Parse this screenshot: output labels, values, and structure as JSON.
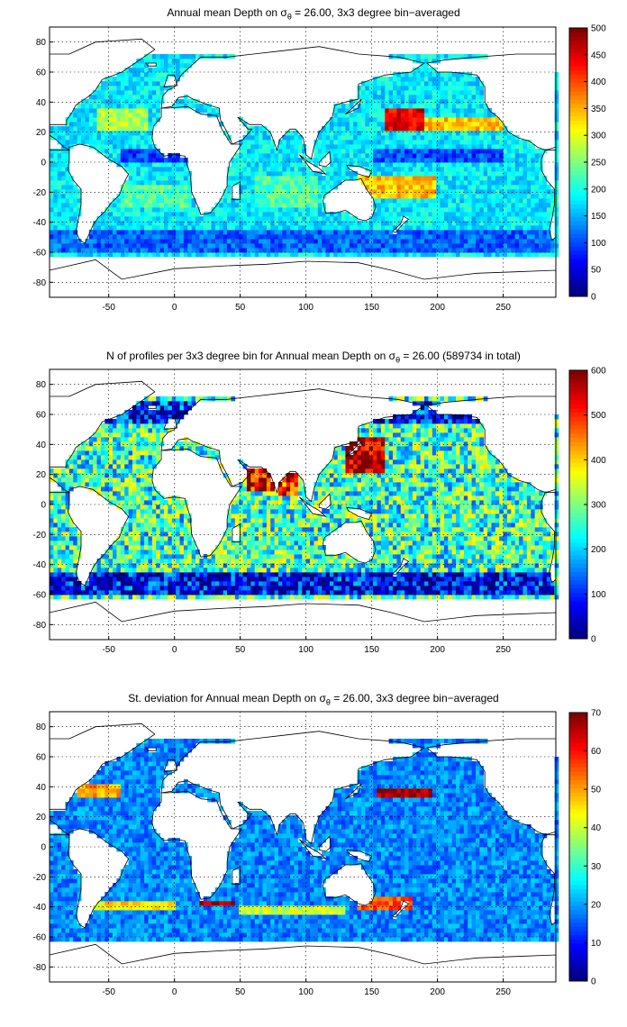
{
  "colors": {
    "ocean_background": "#ffffff",
    "coast": "#000000",
    "grid": "#000000"
  },
  "colormap": "jet",
  "chart_data": [
    {
      "type": "heatmap",
      "title": {
        "prefix": "Annual mean Depth on ",
        "sigma": "σ",
        "sub": "θ",
        "suffix": " = 26.00, 3x3 degree bin−averaged"
      },
      "xlim": [
        -95,
        290
      ],
      "ylim": [
        -90,
        90
      ],
      "xticks": [
        -50,
        0,
        50,
        100,
        150,
        200,
        250
      ],
      "yticks": [
        -80,
        -60,
        -40,
        -20,
        0,
        20,
        40,
        60,
        80
      ],
      "grid": true,
      "colorbar": {
        "min": 0,
        "max": 500,
        "ticks": [
          0,
          50,
          100,
          150,
          200,
          250,
          300,
          350,
          400,
          450,
          500
        ]
      },
      "regions": [
        {
          "lon": [
            160,
            190
          ],
          "lat": [
            20,
            35
          ],
          "value": 450
        },
        {
          "lon": [
            190,
            250
          ],
          "lat": [
            20,
            30
          ],
          "value": 340
        },
        {
          "lon": [
            140,
            200
          ],
          "lat": [
            -25,
            -10
          ],
          "value": 340
        },
        {
          "lon": [
            -60,
            -20
          ],
          "lat": [
            20,
            35
          ],
          "value": 270
        },
        {
          "lon": [
            -40,
            10
          ],
          "lat": [
            -30,
            -15
          ],
          "value": 230
        },
        {
          "lon": [
            60,
            110
          ],
          "lat": [
            -30,
            -10
          ],
          "value": 230
        },
        {
          "lon": [
            150,
            250
          ],
          "lat": [
            0,
            10
          ],
          "value": 100
        },
        {
          "lon": [
            -40,
            10
          ],
          "lat": [
            0,
            10
          ],
          "value": 90
        },
        {
          "lon": [
            -95,
            290
          ],
          "lat": [
            -60,
            -45
          ],
          "value": 110
        }
      ],
      "base_value": 180
    },
    {
      "type": "heatmap",
      "title": {
        "prefix": "N of profiles per 3x3 degree bin for Annual mean Depth on ",
        "sigma": "σ",
        "sub": "θ",
        "suffix": " = 26.00 (589734 in total)"
      },
      "xlim": [
        -95,
        290
      ],
      "ylim": [
        -90,
        90
      ],
      "xticks": [
        -50,
        0,
        50,
        100,
        150,
        200,
        250
      ],
      "yticks": [
        -80,
        -60,
        -40,
        -20,
        0,
        20,
        40,
        60,
        80
      ],
      "grid": true,
      "colorbar": {
        "min": 0,
        "max": 600,
        "ticks": [
          0,
          100,
          200,
          300,
          400,
          500,
          600
        ]
      },
      "regions": [
        {
          "lon": [
            130,
            160
          ],
          "lat": [
            20,
            45
          ],
          "value": 580
        },
        {
          "lon": [
            55,
            75
          ],
          "lat": [
            10,
            25
          ],
          "value": 560
        },
        {
          "lon": [
            80,
            95
          ],
          "lat": [
            5,
            20
          ],
          "value": 500
        },
        {
          "lon": [
            -95,
            290
          ],
          "lat": [
            -60,
            -45
          ],
          "value": 60
        },
        {
          "lon": [
            -95,
            290
          ],
          "lat": [
            55,
            70
          ],
          "value": 80
        }
      ],
      "base_value": 260
    },
    {
      "type": "heatmap",
      "title": {
        "prefix": "St. deviation for Annual mean Depth on ",
        "sigma": "σ",
        "sub": "θ",
        "suffix": " = 26.00, 3x3 degree bin−averaged"
      },
      "xlim": [
        -95,
        290
      ],
      "ylim": [
        -90,
        90
      ],
      "xticks": [
        -50,
        0,
        50,
        100,
        150,
        200,
        250
      ],
      "yticks": [
        -80,
        -60,
        -40,
        -20,
        0,
        20,
        40,
        60,
        80
      ],
      "grid": true,
      "colorbar": {
        "min": 0,
        "max": 70,
        "ticks": [
          0,
          10,
          20,
          30,
          40,
          50,
          60,
          70
        ]
      },
      "regions": [
        {
          "lon": [
            155,
            195
          ],
          "lat": [
            33,
            40
          ],
          "value": 68
        },
        {
          "lon": [
            20,
            45
          ],
          "lat": [
            -40,
            -35
          ],
          "value": 68
        },
        {
          "lon": [
            -75,
            -40
          ],
          "lat": [
            32,
            42
          ],
          "value": 50
        },
        {
          "lon": [
            140,
            180
          ],
          "lat": [
            -42,
            -32
          ],
          "value": 55
        },
        {
          "lon": [
            -70,
            0
          ],
          "lat": [
            -42,
            -35
          ],
          "value": 45
        },
        {
          "lon": [
            50,
            130
          ],
          "lat": [
            -45,
            -40
          ],
          "value": 40
        }
      ],
      "base_value": 18
    }
  ]
}
